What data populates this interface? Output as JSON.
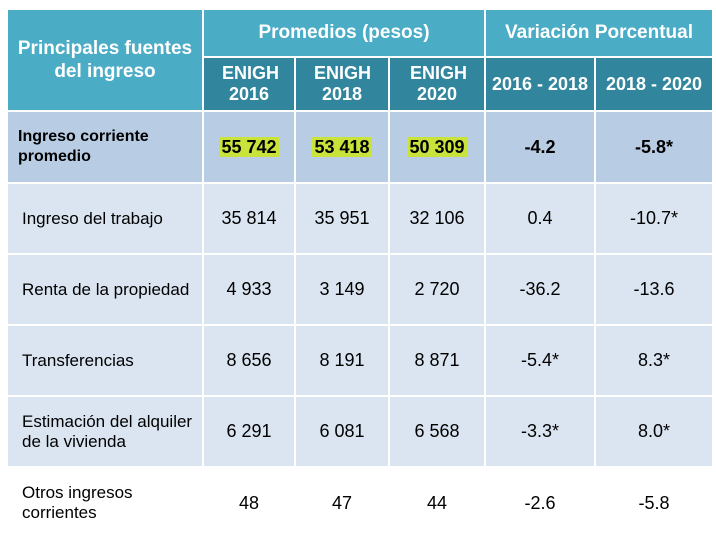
{
  "header": {
    "source_label": "Principales fuentes del ingreso",
    "group_promedios": "Promedios (pesos)",
    "group_variacion": "Variación Porcentual",
    "cols": [
      "ENIGH 2016",
      "ENIGH 2018",
      "ENIGH 2020"
    ],
    "var_cols": [
      "2016 - 2018",
      "2018 - 2020"
    ]
  },
  "rows": [
    {
      "label": "Ingreso corriente promedio",
      "v2016": "55 742",
      "v2018": "53 418",
      "v2020": "50 309",
      "var1": "-4.2",
      "var2": "-5.8*"
    },
    {
      "label": "Ingreso del trabajo",
      "v2016": "35 814",
      "v2018": "35 951",
      "v2020": "32 106",
      "var1": "0.4",
      "var2": "-10.7*"
    },
    {
      "label": "Renta de la propiedad",
      "v2016": "4 933",
      "v2018": "3 149",
      "v2020": "2 720",
      "var1": "-36.2",
      "var2": "-13.6"
    },
    {
      "label": "Transferencias",
      "v2016": "8 656",
      "v2018": "8 191",
      "v2020": "8 871",
      "var1": "-5.4*",
      "var2": "8.3*"
    },
    {
      "label": "Estimación del alquiler de la vivienda",
      "v2016": "6 291",
      "v2018": "6 081",
      "v2020": "6 568",
      "var1": "-3.3*",
      "var2": "8.0*"
    },
    {
      "label": "Otros ingresos corrientes",
      "v2016": "48",
      "v2018": "47",
      "v2020": "44",
      "var1": "-2.6",
      "var2": "-5.8"
    }
  ],
  "colors": {
    "header": "#4bacc6",
    "header_dark": "#31859c",
    "row_main": "#b8cce4",
    "row_alt": "#dbe5f1",
    "highlight": "#c9e33a"
  }
}
